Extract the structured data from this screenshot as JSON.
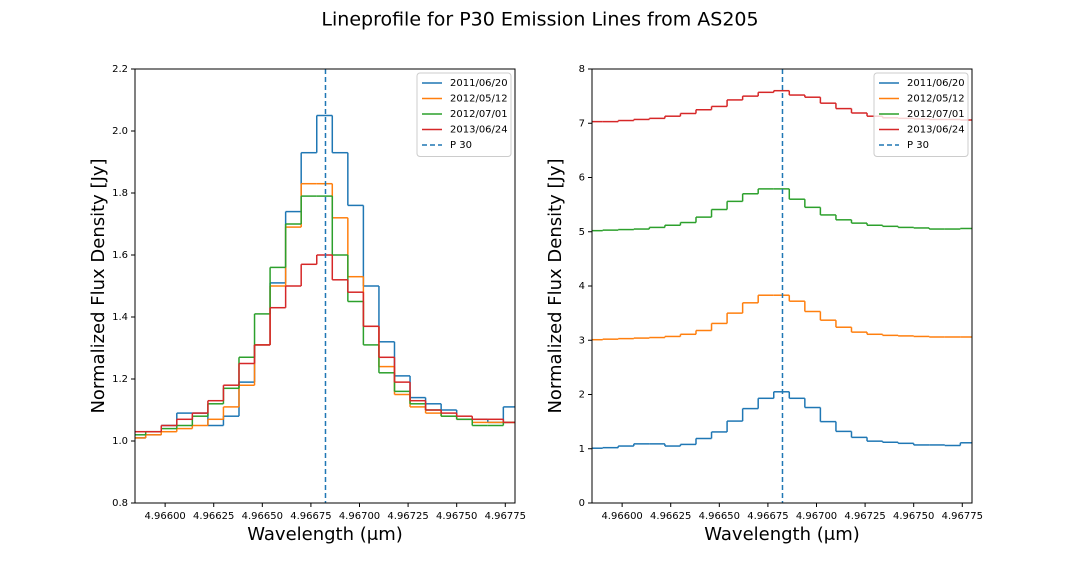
{
  "title": "Lineprofile for P30 Emission Lines from AS205",
  "chart_data": [
    {
      "type": "step",
      "xlabel": "Wavelength (μm)",
      "ylabel": "Normalized Flux Density [Jy]",
      "x": [
        4.96586,
        4.96594,
        4.96602,
        4.9661,
        4.96618,
        4.96626,
        4.96634,
        4.96642,
        4.9665,
        4.96658,
        4.96666,
        4.96674,
        4.96682,
        4.9669,
        4.96698,
        4.96706,
        4.96714,
        4.96722,
        4.9673,
        4.96738,
        4.96746,
        4.96754,
        4.96762,
        4.9677,
        4.96778
      ],
      "series": [
        {
          "name": "2011/06/20",
          "color": "#1f77b4",
          "values": [
            1.01,
            1.02,
            1.05,
            1.09,
            1.09,
            1.05,
            1.08,
            1.19,
            1.31,
            1.51,
            1.74,
            1.93,
            2.05,
            1.93,
            1.76,
            1.5,
            1.32,
            1.21,
            1.14,
            1.12,
            1.1,
            1.07,
            1.07,
            1.06,
            1.11
          ]
        },
        {
          "name": "2012/05/12",
          "color": "#ff7f0e",
          "values": [
            1.01,
            1.02,
            1.03,
            1.04,
            1.05,
            1.07,
            1.11,
            1.18,
            1.31,
            1.5,
            1.69,
            1.83,
            1.83,
            1.72,
            1.53,
            1.37,
            1.24,
            1.15,
            1.11,
            1.09,
            1.08,
            1.07,
            1.06,
            1.06,
            1.06
          ]
        },
        {
          "name": "2012/07/01",
          "color": "#2ca02c",
          "values": [
            1.02,
            1.03,
            1.04,
            1.05,
            1.08,
            1.12,
            1.17,
            1.27,
            1.41,
            1.56,
            1.7,
            1.79,
            1.79,
            1.6,
            1.45,
            1.31,
            1.22,
            1.16,
            1.12,
            1.1,
            1.08,
            1.07,
            1.05,
            1.05,
            1.06
          ]
        },
        {
          "name": "2013/06/24",
          "color": "#d62728",
          "values": [
            1.03,
            1.03,
            1.05,
            1.07,
            1.09,
            1.13,
            1.18,
            1.25,
            1.31,
            1.43,
            1.5,
            1.57,
            1.6,
            1.52,
            1.48,
            1.37,
            1.27,
            1.19,
            1.13,
            1.1,
            1.09,
            1.08,
            1.07,
            1.07,
            1.06
          ]
        }
      ],
      "vline": {
        "name": "P 30",
        "x": 4.966825,
        "color": "#1f77b4"
      },
      "xlim": [
        4.965845,
        4.9678
      ],
      "xticks": [
        {
          "value": 4.966,
          "label": "4.96600"
        },
        {
          "value": 4.96625,
          "label": "4.96625"
        },
        {
          "value": 4.9665,
          "label": "4.96650"
        },
        {
          "value": 4.96675,
          "label": "4.96675"
        },
        {
          "value": 4.967,
          "label": "4.96700"
        },
        {
          "value": 4.96725,
          "label": "4.96725"
        },
        {
          "value": 4.9675,
          "label": "4.96750"
        },
        {
          "value": 4.96775,
          "label": "4.96775"
        }
      ],
      "ylim": [
        0.8,
        2.2
      ],
      "yticks": [
        {
          "value": 0.8,
          "label": "0.8"
        },
        {
          "value": 1,
          "label": "1.0"
        },
        {
          "value": 1.2,
          "label": "1.2"
        },
        {
          "value": 1.4,
          "label": "1.4"
        },
        {
          "value": 1.6,
          "label": "1.6"
        },
        {
          "value": 1.8,
          "label": "1.8"
        },
        {
          "value": 2,
          "label": "2.0"
        },
        {
          "value": 2.2,
          "label": "2.2"
        }
      ],
      "legend": "upper right"
    },
    {
      "type": "step",
      "xlabel": "Wavelength (μm)",
      "ylabel": "Normalized Flux Density [Jy]",
      "x": [
        4.96586,
        4.96594,
        4.96602,
        4.9661,
        4.96618,
        4.96626,
        4.96634,
        4.96642,
        4.9665,
        4.96658,
        4.96666,
        4.96674,
        4.96682,
        4.9669,
        4.96698,
        4.96706,
        4.96714,
        4.96722,
        4.9673,
        4.96738,
        4.96746,
        4.96754,
        4.96762,
        4.9677,
        4.96778
      ],
      "series": [
        {
          "name": "2011/06/20",
          "color": "#1f77b4",
          "values": [
            1.01,
            1.02,
            1.05,
            1.09,
            1.09,
            1.05,
            1.08,
            1.19,
            1.31,
            1.51,
            1.74,
            1.93,
            2.05,
            1.93,
            1.76,
            1.5,
            1.32,
            1.21,
            1.14,
            1.12,
            1.1,
            1.07,
            1.07,
            1.06,
            1.11
          ]
        },
        {
          "name": "2012/05/12",
          "color": "#ff7f0e",
          "values": [
            3.01,
            3.02,
            3.03,
            3.04,
            3.05,
            3.07,
            3.11,
            3.18,
            3.31,
            3.5,
            3.69,
            3.83,
            3.83,
            3.72,
            3.53,
            3.37,
            3.24,
            3.15,
            3.11,
            3.09,
            3.08,
            3.07,
            3.06,
            3.06,
            3.06
          ]
        },
        {
          "name": "2012/07/01",
          "color": "#2ca02c",
          "values": [
            5.02,
            5.03,
            5.04,
            5.05,
            5.08,
            5.12,
            5.17,
            5.27,
            5.41,
            5.56,
            5.7,
            5.79,
            5.79,
            5.6,
            5.45,
            5.31,
            5.22,
            5.16,
            5.12,
            5.1,
            5.08,
            5.07,
            5.05,
            5.05,
            5.06
          ]
        },
        {
          "name": "2013/06/24",
          "color": "#d62728",
          "values": [
            7.03,
            7.03,
            7.05,
            7.07,
            7.09,
            7.13,
            7.18,
            7.25,
            7.31,
            7.43,
            7.5,
            7.57,
            7.6,
            7.52,
            7.48,
            7.37,
            7.27,
            7.19,
            7.13,
            7.1,
            7.09,
            7.08,
            7.07,
            7.07,
            7.06
          ]
        }
      ],
      "vline": {
        "name": "P 30",
        "x": 4.966825,
        "color": "#1f77b4"
      },
      "xlim": [
        4.965845,
        4.9678
      ],
      "xticks": [
        {
          "value": 4.966,
          "label": "4.96600"
        },
        {
          "value": 4.96625,
          "label": "4.96625"
        },
        {
          "value": 4.9665,
          "label": "4.96650"
        },
        {
          "value": 4.96675,
          "label": "4.96675"
        },
        {
          "value": 4.967,
          "label": "4.96700"
        },
        {
          "value": 4.96725,
          "label": "4.96725"
        },
        {
          "value": 4.9675,
          "label": "4.96750"
        },
        {
          "value": 4.96775,
          "label": "4.96775"
        }
      ],
      "ylim": [
        0,
        8
      ],
      "yticks": [
        0,
        1,
        2,
        3,
        4,
        5,
        6,
        7,
        8
      ],
      "legend": "upper right"
    }
  ]
}
